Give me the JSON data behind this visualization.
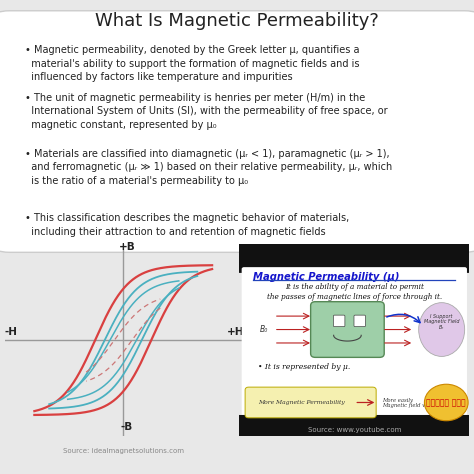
{
  "title": "What Is Magnetic Permeability?",
  "title_fontsize": 13,
  "title_color": "#222222",
  "background_color": "#e8e8e8",
  "top_panel_bg": "#ffffff",
  "bullet_points": [
    "Magnetic permeability, denoted by the Greek letter μ, quantifies a\n  material's ability to support the formation of magnetic fields and is\n  influenced by factors like temperature and impurities",
    "The unit of magnetic permeability is henries per meter (H/m) in the\n  International System of Units (SI), with the permeability of free space, or\n  magnetic constant, represented by μ₀",
    "Materials are classified into diamagnetic (μᵣ < 1), paramagnetic (μᵣ > 1),\n  and ferromagnetic (μᵣ ≫ 1) based on their relative permeability, μᵣ, which\n  is the ratio of a material's permeability to μ₀",
    "This classification describes the magnetic behavior of materials,\n  including their attraction to and retention of magnetic fields"
  ],
  "bullet_fontsize": 7.0,
  "bullet_color": "#222222",
  "hysteresis_bg": "#f0f0f0",
  "hysteresis_axis_color": "#999999",
  "hysteresis_red": "#d94040",
  "hysteresis_cyan": "#4ab0c0",
  "hysteresis_dashed_color": "#cc7777",
  "right_panel_bg": "#1a1a1a",
  "right_panel_title_color": "#1515cc",
  "right_panel_content_bg": "#ffffff",
  "source_left": "Source: idealmagnetsolutions.com",
  "source_right": "Source: www.youtube.com",
  "source_fontsize": 5.0,
  "source_color": "#888888",
  "box_color": "#9ecfa8",
  "arrow_color": "#bb2222",
  "hindi_bg": "#f0c030",
  "hindi_text": "हिंदी में",
  "yellow_bg": "#f5f0b0"
}
